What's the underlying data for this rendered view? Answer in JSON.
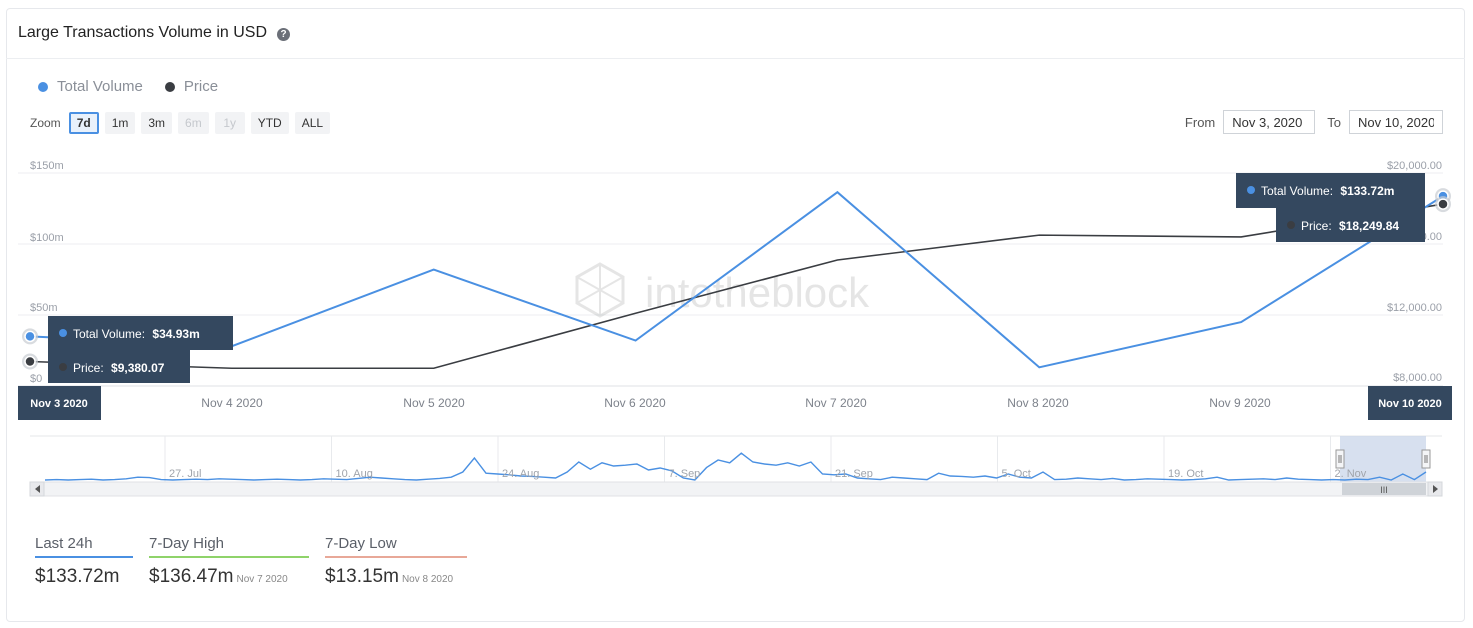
{
  "header": {
    "title": "Large Transactions Volume in USD",
    "help_icon": "question-circle-icon"
  },
  "legend": [
    {
      "label": "Total Volume",
      "color": "#4a90e2"
    },
    {
      "label": "Price",
      "color": "#3a3d42"
    }
  ],
  "zoom": {
    "label": "Zoom",
    "buttons": [
      {
        "label": "7d",
        "state": "active"
      },
      {
        "label": "1m",
        "state": "normal"
      },
      {
        "label": "3m",
        "state": "normal"
      },
      {
        "label": "6m",
        "state": "disabled"
      },
      {
        "label": "1y",
        "state": "disabled"
      },
      {
        "label": "YTD",
        "state": "normal"
      },
      {
        "label": "ALL",
        "state": "normal"
      }
    ]
  },
  "range": {
    "from_label": "From",
    "from_value": "Nov 3, 2020",
    "to_label": "To",
    "to_value": "Nov 10, 2020"
  },
  "watermark": "intotheblock",
  "chart_data": {
    "type": "line",
    "x": [
      "Nov 3 2020",
      "Nov 4 2020",
      "Nov 5 2020",
      "Nov 6 2020",
      "Nov 7 2020",
      "Nov 8 2020",
      "Nov 9 2020",
      "Nov 10 2020"
    ],
    "x_tick_labels": [
      "Nov 4 2020",
      "Nov 5 2020",
      "Nov 6 2020",
      "Nov 7 2020",
      "Nov 8 2020",
      "Nov 9 2020"
    ],
    "series": [
      {
        "name": "Total Volume",
        "axis": "left",
        "color": "#4a90e2",
        "values": [
          34.93,
          28,
          82,
          32,
          136.47,
          13.15,
          45,
          133.72
        ]
      },
      {
        "name": "Price",
        "axis": "right",
        "color": "#3a3d42",
        "values": [
          9380.07,
          9000,
          9000,
          12100,
          15100,
          16500,
          16400,
          18249.84
        ]
      }
    ],
    "y_left": {
      "ticks": [
        "$150m",
        "$100m",
        "$50m",
        "$0"
      ],
      "range": [
        0,
        150
      ]
    },
    "y_right": {
      "ticks": [
        "$20,000.00",
        "$16,000.00",
        "$12,000.00",
        "$8,000.00"
      ],
      "range": [
        8000,
        20000
      ]
    },
    "tooltips": {
      "start": {
        "volume": "$34.93m",
        "price": "$9,380.07",
        "date": "Nov 3 2020"
      },
      "end": {
        "volume": "$133.72m",
        "price": "$18,249.84",
        "date": "Nov 10 2020"
      },
      "volume_label": "Total Volume:",
      "price_label": "Price:"
    }
  },
  "navigator": {
    "labels": [
      "27. Jul",
      "10. Aug",
      "24. Aug",
      "7. Sep",
      "21. Sep",
      "5. Oct",
      "19. Oct",
      "2. Nov"
    ],
    "values": [
      0.05,
      0.06,
      0.05,
      0.06,
      0.07,
      0.05,
      0.06,
      0.08,
      0.12,
      0.11,
      0.06,
      0.05,
      0.06,
      0.07,
      0.06,
      0.08,
      0.07,
      0.06,
      0.05,
      0.06,
      0.07,
      0.06,
      0.05,
      0.06,
      0.08,
      0.07,
      0.06,
      0.09,
      0.12,
      0.1,
      0.08,
      0.06,
      0.05,
      0.07,
      0.09,
      0.12,
      0.25,
      0.6,
      0.22,
      0.2,
      0.18,
      0.15,
      0.14,
      0.12,
      0.1,
      0.25,
      0.5,
      0.32,
      0.48,
      0.4,
      0.42,
      0.45,
      0.3,
      0.35,
      0.28,
      0.1,
      0.05,
      0.36,
      0.55,
      0.48,
      0.72,
      0.5,
      0.45,
      0.42,
      0.48,
      0.4,
      0.5,
      0.2,
      0.18,
      0.2,
      0.1,
      0.08,
      0.06,
      0.12,
      0.1,
      0.08,
      0.06,
      0.22,
      0.15,
      0.14,
      0.12,
      0.15,
      0.1,
      0.2,
      0.12,
      0.1,
      0.25,
      0.06,
      0.07,
      0.1,
      0.08,
      0.06,
      0.09,
      0.05,
      0.06,
      0.08,
      0.07,
      0.06,
      0.05,
      0.06,
      0.08,
      0.12,
      0.05,
      0.06,
      0.07,
      0.08,
      0.06,
      0.1,
      0.07,
      0.06,
      0.05,
      0.06,
      0.05,
      0.07,
      0.06,
      0.12,
      0.05,
      0.2,
      0.06,
      0.25
    ]
  },
  "stats": [
    {
      "label": "Last 24h",
      "value": "$133.72m",
      "date": "",
      "color": "#4a90e2"
    },
    {
      "label": "7-Day High",
      "value": "$136.47m",
      "date": "Nov 7 2020",
      "color": "#8fd36a"
    },
    {
      "label": "7-Day Low",
      "value": "$13.15m",
      "date": "Nov 8 2020",
      "color": "#e8a898"
    }
  ]
}
